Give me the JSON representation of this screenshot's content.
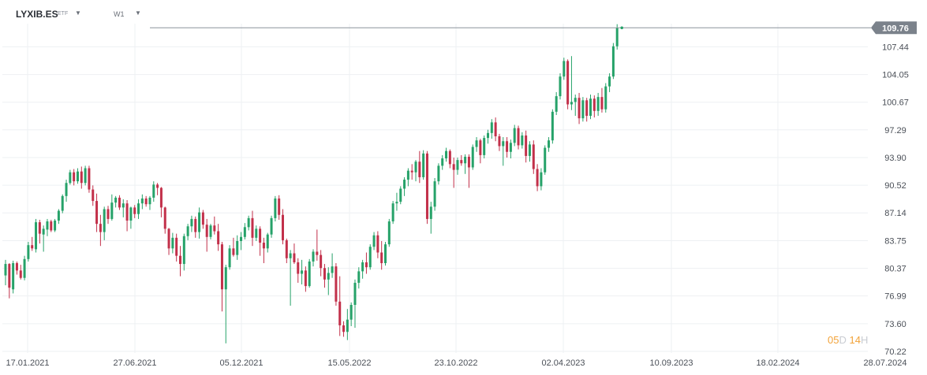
{
  "header": {
    "symbol": "LYXIB.ES",
    "instrument_type": "ETF",
    "timeframe": "W1"
  },
  "countdown": {
    "days": "05",
    "days_unit": "D",
    "hours": "14",
    "hours_unit": "H"
  },
  "colors": {
    "up": "#26a269",
    "down": "#c2304a",
    "grid": "#eef0f3",
    "price_line": "#8c939c",
    "price_tag": "#7b828b",
    "axis_text": "#4a4f57"
  },
  "chart_data": {
    "type": "candlestick",
    "current_price": "109.76",
    "ylim": [
      70.22,
      112.0
    ],
    "y_ticks": [
      "107.44",
      "104.05",
      "100.67",
      "97.29",
      "93.90",
      "90.52",
      "87.14",
      "83.75",
      "80.37",
      "76.99",
      "73.60",
      "70.22"
    ],
    "x_ticks": [
      "17.01.2021",
      "27.06.2021",
      "05.12.2021",
      "15.05.2022",
      "23.10.2022",
      "02.04.2023",
      "10.09.2023",
      "18.02.2024",
      "28.07.2024"
    ],
    "grid": true,
    "candles": [
      [
        79.5,
        81.4,
        78.3,
        80.9
      ],
      [
        80.9,
        81.0,
        76.7,
        78.0
      ],
      [
        77.8,
        81.3,
        77.3,
        81.0
      ],
      [
        81.0,
        81.2,
        79.6,
        80.1
      ],
      [
        80.1,
        80.8,
        79.0,
        79.2
      ],
      [
        79.2,
        81.9,
        78.9,
        81.5
      ],
      [
        81.5,
        83.6,
        81.2,
        83.2
      ],
      [
        83.2,
        84.2,
        82.5,
        82.8
      ],
      [
        82.7,
        86.4,
        82.3,
        86.0
      ],
      [
        86.0,
        86.3,
        83.4,
        84.6
      ],
      [
        84.5,
        85.6,
        82.4,
        85.2
      ],
      [
        85.1,
        86.4,
        84.3,
        86.1
      ],
      [
        86.1,
        86.3,
        84.8,
        85.0
      ],
      [
        85.0,
        86.4,
        84.8,
        86.2
      ],
      [
        86.2,
        87.6,
        85.8,
        87.4
      ],
      [
        87.4,
        89.4,
        87.1,
        89.2
      ],
      [
        89.2,
        91.2,
        88.5,
        90.8
      ],
      [
        90.8,
        92.4,
        90.6,
        92.1
      ],
      [
        92.1,
        92.5,
        90.5,
        91.0
      ],
      [
        91.0,
        92.6,
        90.7,
        92.2
      ],
      [
        92.2,
        92.8,
        90.1,
        90.8
      ],
      [
        90.8,
        92.9,
        90.5,
        92.6
      ],
      [
        92.6,
        92.9,
        89.6,
        90.0
      ],
      [
        90.0,
        90.5,
        88.0,
        88.6
      ],
      [
        88.6,
        89.5,
        84.8,
        85.8
      ],
      [
        85.8,
        86.9,
        83.1,
        84.8
      ],
      [
        84.8,
        87.9,
        83.8,
        87.6
      ],
      [
        87.6,
        88.0,
        85.8,
        86.4
      ],
      [
        86.4,
        89.4,
        86.2,
        88.4
      ],
      [
        88.4,
        89.2,
        87.8,
        89.0
      ],
      [
        89.0,
        89.3,
        87.5,
        87.8
      ],
      [
        87.8,
        88.8,
        86.6,
        88.3
      ],
      [
        88.3,
        88.7,
        84.9,
        86.2
      ],
      [
        86.2,
        87.9,
        85.2,
        87.8
      ],
      [
        87.8,
        88.1,
        86.5,
        87.0
      ],
      [
        87.0,
        88.8,
        86.4,
        88.3
      ],
      [
        88.3,
        89.4,
        87.6,
        88.9
      ],
      [
        88.9,
        89.2,
        87.9,
        88.2
      ],
      [
        88.2,
        89.2,
        87.5,
        89.0
      ],
      [
        89.0,
        91.0,
        88.5,
        90.6
      ],
      [
        90.6,
        90.8,
        89.3,
        90.2
      ],
      [
        90.2,
        90.3,
        86.6,
        87.8
      ],
      [
        87.8,
        87.9,
        84.6,
        85.2
      ],
      [
        85.2,
        85.3,
        82.0,
        82.8
      ],
      [
        82.8,
        84.7,
        82.2,
        84.1
      ],
      [
        84.1,
        84.6,
        81.2,
        81.9
      ],
      [
        81.9,
        83.1,
        79.4,
        80.9
      ],
      [
        80.9,
        84.6,
        80.1,
        84.3
      ],
      [
        84.3,
        85.8,
        83.8,
        85.5
      ],
      [
        85.5,
        86.8,
        84.8,
        86.4
      ],
      [
        86.4,
        86.7,
        84.1,
        84.8
      ],
      [
        84.8,
        87.8,
        84.0,
        87.2
      ],
      [
        87.2,
        87.5,
        85.2,
        85.7
      ],
      [
        85.7,
        86.4,
        82.4,
        84.2
      ],
      [
        84.2,
        85.8,
        83.9,
        85.6
      ],
      [
        85.6,
        86.7,
        84.5,
        84.9
      ],
      [
        84.9,
        85.8,
        82.5,
        83.3
      ],
      [
        83.3,
        83.6,
        75.1,
        77.8
      ],
      [
        77.8,
        80.8,
        71.2,
        80.5
      ],
      [
        80.5,
        83.2,
        80.2,
        82.8
      ],
      [
        82.8,
        84.1,
        81.8,
        82.0
      ],
      [
        82.0,
        84.4,
        81.4,
        83.7
      ],
      [
        83.7,
        84.8,
        82.6,
        84.2
      ],
      [
        84.2,
        85.9,
        83.9,
        85.4
      ],
      [
        85.4,
        86.8,
        85.0,
        86.5
      ],
      [
        86.5,
        87.4,
        83.1,
        84.1
      ],
      [
        84.1,
        85.6,
        83.7,
        85.2
      ],
      [
        85.2,
        85.5,
        81.9,
        83.5
      ],
      [
        83.5,
        84.1,
        81.0,
        82.8
      ],
      [
        82.8,
        84.7,
        82.3,
        84.5
      ],
      [
        84.5,
        86.8,
        84.1,
        86.5
      ],
      [
        86.5,
        89.2,
        86.1,
        88.9
      ],
      [
        88.9,
        89.3,
        86.3,
        86.9
      ],
      [
        86.9,
        87.6,
        83.3,
        83.8
      ],
      [
        83.8,
        84.0,
        81.0,
        81.6
      ],
      [
        81.6,
        82.6,
        75.8,
        82.2
      ],
      [
        82.2,
        83.4,
        80.9,
        81.1
      ],
      [
        81.1,
        81.6,
        78.6,
        79.7
      ],
      [
        79.7,
        81.4,
        78.4,
        80.1
      ],
      [
        80.1,
        80.6,
        77.5,
        78.2
      ],
      [
        78.2,
        81.5,
        78.0,
        81.2
      ],
      [
        81.2,
        82.7,
        80.6,
        82.4
      ],
      [
        82.4,
        85.1,
        81.3,
        82.0
      ],
      [
        82.0,
        82.6,
        79.4,
        80.4
      ],
      [
        80.4,
        80.9,
        78.0,
        79.0
      ],
      [
        79.0,
        80.5,
        77.1,
        79.8
      ],
      [
        79.8,
        82.2,
        79.2,
        80.6
      ],
      [
        80.6,
        81.0,
        75.8,
        76.3
      ],
      [
        76.3,
        79.4,
        72.1,
        73.4
      ],
      [
        73.4,
        73.9,
        72.0,
        72.6
      ],
      [
        72.6,
        75.4,
        71.6,
        74.1
      ],
      [
        74.1,
        76.2,
        73.3,
        75.9
      ],
      [
        75.9,
        79.0,
        73.1,
        78.6
      ],
      [
        78.6,
        80.5,
        77.9,
        80.0
      ],
      [
        80.0,
        81.4,
        79.1,
        81.1
      ],
      [
        81.1,
        82.3,
        79.7,
        80.5
      ],
      [
        80.5,
        83.3,
        80.2,
        83.0
      ],
      [
        83.0,
        84.8,
        82.6,
        84.4
      ],
      [
        84.4,
        84.9,
        81.6,
        82.3
      ],
      [
        82.3,
        83.7,
        80.2,
        81.0
      ],
      [
        81.0,
        83.6,
        80.7,
        83.3
      ],
      [
        83.3,
        86.4,
        83.0,
        86.1
      ],
      [
        86.1,
        88.6,
        85.8,
        88.3
      ],
      [
        88.3,
        89.6,
        87.4,
        88.5
      ],
      [
        88.5,
        90.4,
        88.2,
        90.1
      ],
      [
        90.1,
        91.5,
        89.2,
        91.2
      ],
      [
        91.2,
        92.6,
        90.4,
        92.3
      ],
      [
        92.3,
        93.1,
        91.2,
        92.1
      ],
      [
        92.1,
        93.6,
        91.0,
        93.4
      ],
      [
        93.4,
        94.7,
        90.8,
        91.5
      ],
      [
        91.5,
        94.8,
        91.2,
        94.4
      ],
      [
        94.4,
        94.7,
        85.8,
        86.4
      ],
      [
        86.4,
        88.5,
        84.6,
        87.9
      ],
      [
        87.9,
        91.4,
        87.4,
        91.0
      ],
      [
        91.0,
        93.2,
        90.6,
        92.9
      ],
      [
        92.9,
        94.2,
        92.4,
        93.8
      ],
      [
        93.8,
        95.1,
        93.4,
        94.7
      ],
      [
        94.7,
        94.9,
        92.6,
        93.1
      ],
      [
        93.1,
        93.9,
        90.2,
        92.4
      ],
      [
        92.4,
        93.9,
        91.8,
        93.6
      ],
      [
        93.6,
        94.2,
        92.9,
        93.2
      ],
      [
        93.2,
        94.3,
        91.9,
        94.0
      ],
      [
        94.0,
        94.3,
        90.2,
        92.7
      ],
      [
        92.7,
        95.5,
        92.4,
        95.2
      ],
      [
        95.2,
        96.4,
        94.6,
        96.0
      ],
      [
        96.0,
        96.2,
        93.2,
        94.2
      ],
      [
        94.2,
        96.6,
        93.8,
        96.3
      ],
      [
        96.3,
        97.3,
        95.6,
        96.9
      ],
      [
        96.9,
        98.6,
        96.2,
        98.2
      ],
      [
        98.2,
        98.8,
        95.9,
        96.5
      ],
      [
        96.5,
        96.8,
        94.7,
        95.3
      ],
      [
        95.3,
        96.4,
        92.9,
        95.9
      ],
      [
        95.9,
        96.4,
        93.9,
        94.6
      ],
      [
        94.6,
        96.1,
        93.8,
        95.7
      ],
      [
        95.7,
        97.9,
        95.3,
        97.5
      ],
      [
        97.5,
        97.8,
        94.9,
        95.4
      ],
      [
        95.4,
        97.0,
        95.0,
        96.6
      ],
      [
        96.6,
        97.2,
        93.3,
        94.1
      ],
      [
        94.1,
        95.9,
        93.4,
        95.5
      ],
      [
        95.5,
        96.0,
        91.9,
        92.5
      ],
      [
        92.5,
        93.1,
        89.8,
        90.4
      ],
      [
        90.4,
        92.6,
        89.9,
        92.1
      ],
      [
        92.1,
        95.4,
        91.8,
        95.1
      ],
      [
        95.1,
        96.4,
        94.6,
        96.0
      ],
      [
        96.0,
        99.8,
        95.6,
        99.5
      ],
      [
        99.5,
        101.9,
        99.1,
        101.4
      ],
      [
        101.4,
        104.2,
        101.0,
        103.8
      ],
      [
        103.8,
        106.1,
        103.4,
        105.7
      ],
      [
        105.7,
        105.9,
        99.8,
        100.4
      ],
      [
        100.4,
        106.3,
        99.7,
        100.7
      ],
      [
        100.7,
        101.6,
        99.0,
        101.2
      ],
      [
        101.2,
        101.8,
        98.0,
        98.7
      ],
      [
        98.7,
        101.3,
        98.3,
        100.9
      ],
      [
        100.9,
        101.2,
        98.3,
        99.0
      ],
      [
        99.0,
        101.6,
        98.6,
        101.1
      ],
      [
        101.1,
        101.5,
        98.8,
        99.6
      ],
      [
        99.6,
        101.8,
        99.0,
        101.3
      ],
      [
        101.3,
        102.4,
        99.4,
        99.8
      ],
      [
        99.8,
        103.0,
        99.4,
        102.6
      ],
      [
        102.6,
        104.2,
        101.9,
        103.8
      ],
      [
        103.8,
        107.9,
        103.5,
        107.5
      ],
      [
        107.5,
        110.2,
        107.1,
        109.76
      ]
    ]
  }
}
